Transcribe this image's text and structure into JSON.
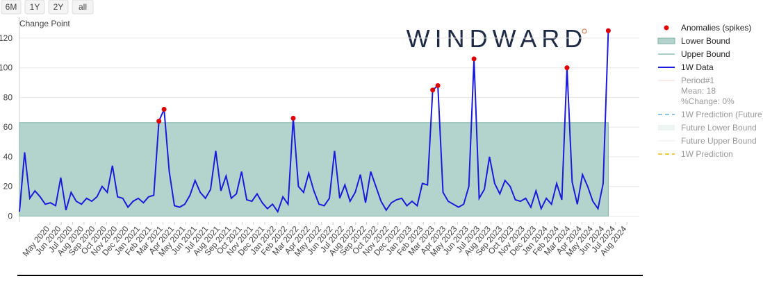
{
  "buttons": [
    "6M",
    "1Y",
    "2Y",
    "all"
  ],
  "chart_data": {
    "type": "line",
    "annotation": "Change Point",
    "logo": "WINDWARD",
    "xlim": [
      0,
      120
    ],
    "xticks": [
      {
        "value": 5.9,
        "label": "May 2020"
      },
      {
        "value": 8.1,
        "label": "Jun 2020"
      },
      {
        "value": 10.3,
        "label": "Jul 2020"
      },
      {
        "value": 12.5,
        "label": "Aug 2020"
      },
      {
        "value": 14.7,
        "label": "Sep 2020"
      },
      {
        "value": 16.9,
        "label": "Oct 2020"
      },
      {
        "value": 19.0,
        "label": "Nov 2020"
      },
      {
        "value": 21.2,
        "label": "Dec 2020"
      },
      {
        "value": 23.4,
        "label": "Jan 2021"
      },
      {
        "value": 25.6,
        "label": "Feb 2021"
      },
      {
        "value": 27.8,
        "label": "Mar 2021"
      },
      {
        "value": 30.0,
        "label": "Apr 2021"
      },
      {
        "value": 32.2,
        "label": "May 2021"
      },
      {
        "value": 34.4,
        "label": "Jun 2021"
      },
      {
        "value": 36.6,
        "label": "Jul 2021"
      },
      {
        "value": 38.8,
        "label": "Aug 2021"
      },
      {
        "value": 41.0,
        "label": "Sep 2021"
      },
      {
        "value": 43.1,
        "label": "Oct 2021"
      },
      {
        "value": 45.3,
        "label": "Nov 2021"
      },
      {
        "value": 47.5,
        "label": "Dec 2021"
      },
      {
        "value": 49.7,
        "label": "Jan 2022"
      },
      {
        "value": 51.9,
        "label": "Feb 2022"
      },
      {
        "value": 54.1,
        "label": "Mar 2022"
      },
      {
        "value": 56.3,
        "label": "Apr 2022"
      },
      {
        "value": 58.5,
        "label": "May 2022"
      },
      {
        "value": 60.7,
        "label": "Jun 2022"
      },
      {
        "value": 62.9,
        "label": "Jul 2022"
      },
      {
        "value": 65.1,
        "label": "Aug 2022"
      },
      {
        "value": 67.2,
        "label": "Sep 2022"
      },
      {
        "value": 69.4,
        "label": "Oct 2022"
      },
      {
        "value": 71.6,
        "label": "Nov 2022"
      },
      {
        "value": 73.8,
        "label": "Dec 2022"
      },
      {
        "value": 76.0,
        "label": "Jan 2023"
      },
      {
        "value": 78.2,
        "label": "Feb 2023"
      },
      {
        "value": 80.4,
        "label": "Mar 2023"
      },
      {
        "value": 82.6,
        "label": "Apr 2023"
      },
      {
        "value": 84.8,
        "label": "May 2023"
      },
      {
        "value": 87.0,
        "label": "Jun 2023"
      },
      {
        "value": 89.2,
        "label": "Jul 2023"
      },
      {
        "value": 91.3,
        "label": "Aug 2023"
      },
      {
        "value": 93.5,
        "label": "Sep 2023"
      },
      {
        "value": 95.7,
        "label": "Oct 2023"
      },
      {
        "value": 97.9,
        "label": "Nov 2023"
      },
      {
        "value": 100.1,
        "label": "Dec 2023"
      },
      {
        "value": 102.3,
        "label": "Jan 2024"
      },
      {
        "value": 104.5,
        "label": "Feb 2024"
      },
      {
        "value": 106.7,
        "label": "Mar 2024"
      },
      {
        "value": 108.9,
        "label": "Apr 2024"
      },
      {
        "value": 111.1,
        "label": "May 2024"
      },
      {
        "value": 113.3,
        "label": "Jun 2024"
      },
      {
        "value": 115.4,
        "label": "Jul 2024"
      },
      {
        "value": 117.6,
        "label": "Aug 2024"
      }
    ],
    "ylim": [
      -4,
      134
    ],
    "yticks": [
      0,
      20,
      40,
      60,
      80,
      100,
      120
    ],
    "grid": true,
    "band": {
      "lower": 0,
      "upper": 63,
      "color": "#b3d4cd",
      "edge": "#7fb3a6"
    },
    "series": [
      {
        "name": "1W Data",
        "color": "#1a1adb",
        "values": [
          3,
          43,
          12,
          17,
          13,
          8,
          9,
          7,
          26,
          4,
          16,
          10,
          8,
          12,
          10,
          13,
          20,
          16,
          34,
          13,
          12,
          6,
          10,
          12,
          9,
          13,
          14,
          64,
          72,
          30,
          7,
          6,
          8,
          14,
          24,
          16,
          12,
          18,
          44,
          17,
          27,
          12,
          15,
          30,
          11,
          10,
          15,
          9,
          5,
          8,
          3,
          13,
          8,
          66,
          20,
          16,
          29,
          17,
          8,
          7,
          12,
          44,
          12,
          21,
          10,
          16,
          28,
          9,
          30,
          20,
          10,
          4,
          9,
          11,
          12,
          7,
          10,
          7,
          22,
          21,
          85,
          88,
          16,
          10,
          8,
          6,
          8,
          20,
          106,
          12,
          18,
          40,
          22,
          15,
          24,
          20,
          11,
          10,
          12,
          6,
          17,
          5,
          12,
          8,
          22,
          11,
          100,
          23,
          8,
          28,
          20,
          10,
          5,
          22,
          125
        ]
      },
      {
        "name": "Anomalies (spikes)",
        "color": "#e00000",
        "x": [
          27,
          28,
          53,
          80,
          81,
          88,
          106,
          114
        ],
        "values": [
          64,
          72,
          66,
          85,
          88,
          106,
          100,
          125
        ]
      }
    ],
    "legend": [
      "Anomalies (spikes)",
      "Lower Bound",
      "Upper Bound",
      "1W Data",
      "Period#1",
      "Mean: 18",
      "%Change: 0%",
      "1W Prediction (Future)",
      "Future Lower Bound",
      "Future Upper Bound",
      "1W Prediction"
    ]
  }
}
